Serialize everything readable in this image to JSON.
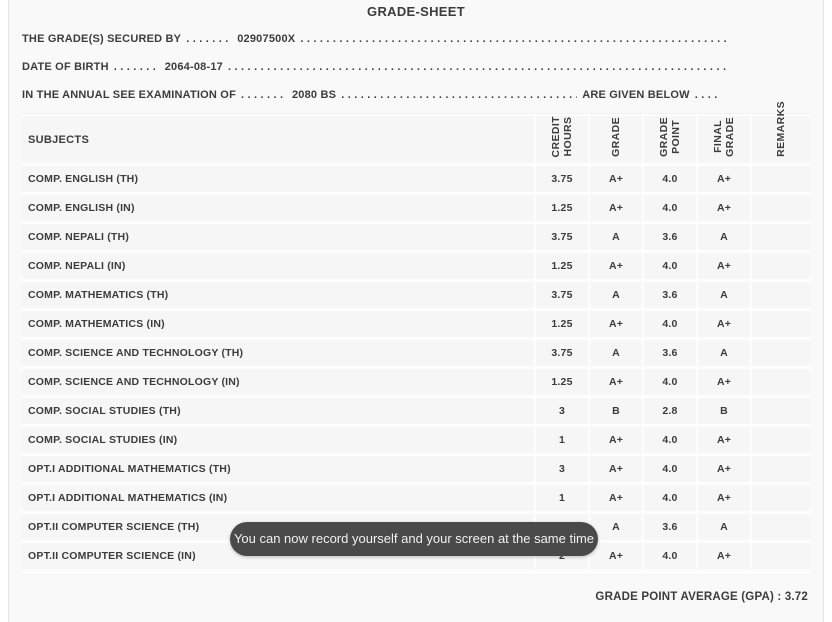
{
  "page": {
    "background": "#f9f9f9",
    "text_color": "#3c3c3c",
    "cell_color": "#f6f6f6"
  },
  "header": {
    "title": "GRADE-SHEET",
    "leader_dots": ". . . . . . . . . . . . . . . . . . . . . . . . . . . . . . . . . . . . . . . . . . . . . . . . . . . . . . . . . . . . . . . . . . . . . . . . . . . . . . . . . . . . . . . . . . . . . . . . . . . .",
    "lines": [
      {
        "label": "THE GRADE(S) SECURED BY",
        "value": "02907500X",
        "tail": ""
      },
      {
        "label": "DATE OF BIRTH",
        "value": "2064-08-17",
        "tail": ""
      },
      {
        "label": "IN THE ANNUAL SEE EXAMINATION OF",
        "value": "2080 BS",
        "tail": "ARE GIVEN BELOW"
      }
    ]
  },
  "table": {
    "columns": {
      "subjects": "SUBJECTS",
      "credit_hours": "CREDIT\nHOURS",
      "grade": "GRADE",
      "grade_point": "GRADE\nPOINT",
      "final_grade": "FINAL\nGRADE",
      "remarks": "REMARKS"
    },
    "rows": [
      {
        "subject": "COMP. ENGLISH (TH)",
        "credit_hours": "3.75",
        "grade": "A+",
        "grade_point": "4.0",
        "final_grade": "A+",
        "remarks": ""
      },
      {
        "subject": "COMP. ENGLISH (IN)",
        "credit_hours": "1.25",
        "grade": "A+",
        "grade_point": "4.0",
        "final_grade": "A+",
        "remarks": ""
      },
      {
        "subject": "COMP. NEPALI (TH)",
        "credit_hours": "3.75",
        "grade": "A",
        "grade_point": "3.6",
        "final_grade": "A",
        "remarks": ""
      },
      {
        "subject": "COMP. NEPALI (IN)",
        "credit_hours": "1.25",
        "grade": "A+",
        "grade_point": "4.0",
        "final_grade": "A+",
        "remarks": ""
      },
      {
        "subject": "COMP. MATHEMATICS (TH)",
        "credit_hours": "3.75",
        "grade": "A",
        "grade_point": "3.6",
        "final_grade": "A",
        "remarks": ""
      },
      {
        "subject": "COMP. MATHEMATICS (IN)",
        "credit_hours": "1.25",
        "grade": "A+",
        "grade_point": "4.0",
        "final_grade": "A+",
        "remarks": ""
      },
      {
        "subject": "COMP. SCIENCE AND TECHNOLOGY (TH)",
        "credit_hours": "3.75",
        "grade": "A",
        "grade_point": "3.6",
        "final_grade": "A",
        "remarks": ""
      },
      {
        "subject": "COMP. SCIENCE AND TECHNOLOGY (IN)",
        "credit_hours": "1.25",
        "grade": "A+",
        "grade_point": "4.0",
        "final_grade": "A+",
        "remarks": ""
      },
      {
        "subject": "COMP. SOCIAL STUDIES (TH)",
        "credit_hours": "3",
        "grade": "B",
        "grade_point": "2.8",
        "final_grade": "B",
        "remarks": ""
      },
      {
        "subject": "COMP. SOCIAL STUDIES (IN)",
        "credit_hours": "1",
        "grade": "A+",
        "grade_point": "4.0",
        "final_grade": "A+",
        "remarks": ""
      },
      {
        "subject": "OPT.I ADDITIONAL MATHEMATICS (TH)",
        "credit_hours": "3",
        "grade": "A+",
        "grade_point": "4.0",
        "final_grade": "A+",
        "remarks": ""
      },
      {
        "subject": "OPT.I ADDITIONAL MATHEMATICS (IN)",
        "credit_hours": "1",
        "grade": "A+",
        "grade_point": "4.0",
        "final_grade": "A+",
        "remarks": ""
      },
      {
        "subject": "OPT.II COMPUTER SCIENCE (TH)",
        "credit_hours": "2",
        "grade": "A",
        "grade_point": "3.6",
        "final_grade": "A",
        "remarks": ""
      },
      {
        "subject": "OPT.II COMPUTER SCIENCE (IN)",
        "credit_hours": "2",
        "grade": "A+",
        "grade_point": "4.0",
        "final_grade": "A+",
        "remarks": ""
      }
    ]
  },
  "footer": {
    "gpa_text": "GRADE POINT AVERAGE (GPA) : 3.72"
  },
  "toast": {
    "message": "You can now record yourself and your screen at the same time",
    "background": "#4a4a4a",
    "text_color": "#f1f1f1"
  }
}
